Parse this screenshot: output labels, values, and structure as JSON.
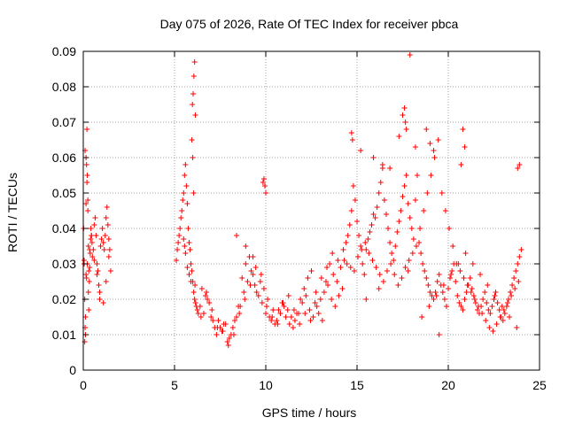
{
  "chart_data": {
    "type": "scatter",
    "title": "Day 075 of 2026, Rate Of TEC Index for receiver pbca",
    "xlabel": "GPS time / hours",
    "ylabel": "ROTI / TECUs",
    "xlim": [
      0,
      25
    ],
    "ylim": [
      0,
      0.09
    ],
    "x_ticks": [
      "0",
      "5",
      "10",
      "15",
      "20",
      "25"
    ],
    "y_ticks": [
      "0",
      "0.01",
      "0.02",
      "0.03",
      "0.04",
      "0.05",
      "0.06",
      "0.07",
      "0.08",
      "0.09"
    ],
    "grid": true,
    "marker": "+",
    "color": "#ff0000",
    "series": [
      {
        "x": [
          0.02,
          0.05,
          0.08,
          0.1,
          0.12,
          0.15,
          0.18,
          0.2,
          0.22,
          0.25,
          0.28,
          0.3,
          0.33,
          0.35,
          0.38,
          0.4,
          0.42,
          0.45,
          0.48,
          0.5,
          0.55,
          0.6,
          0.65,
          0.7,
          0.75,
          0.8,
          0.85,
          0.9,
          0.95,
          1.0,
          1.05,
          1.1,
          1.15,
          1.2,
          1.25,
          1.3,
          1.35,
          1.4,
          1.45,
          1.5,
          0.1,
          0.15,
          0.2,
          0.25,
          0.3,
          0.08,
          0.12,
          0.18,
          0.22,
          0.35,
          0.45,
          0.6,
          0.75,
          0.9,
          1.1,
          1.25,
          1.4,
          0.05,
          0.15,
          0.28,
          5.1,
          5.15,
          5.2,
          5.25,
          5.3,
          5.35,
          5.4,
          5.45,
          5.5,
          5.55,
          5.6,
          5.65,
          5.7,
          5.75,
          5.8,
          5.85,
          5.9,
          5.95,
          6.0,
          6.05,
          6.1,
          6.15,
          6.2,
          6.25,
          6.3,
          5.98,
          6.02,
          6.06,
          6.1,
          6.14,
          5.95,
          6.0,
          6.05,
          5.5,
          5.55,
          5.6,
          5.7,
          5.8,
          5.9,
          6.12,
          6.4,
          6.6,
          6.8,
          7.0,
          7.2,
          7.4,
          7.6,
          7.8,
          8.0,
          8.2,
          8.4,
          8.6,
          8.8,
          9.0,
          9.2,
          9.4,
          9.6,
          9.8,
          10.0,
          10.2,
          10.4,
          10.6,
          10.8,
          11.0,
          11.2,
          11.4,
          11.6,
          11.8,
          12.0,
          12.2,
          12.4,
          12.6,
          12.8,
          13.0,
          13.2,
          13.4,
          13.6,
          13.8,
          14.0,
          14.2,
          6.5,
          6.7,
          6.9,
          7.1,
          7.3,
          7.5,
          7.7,
          7.9,
          8.1,
          8.3,
          8.5,
          8.7,
          8.9,
          9.1,
          9.3,
          9.5,
          9.7,
          9.9,
          10.1,
          10.3,
          10.5,
          10.7,
          10.9,
          11.1,
          11.3,
          11.5,
          11.7,
          11.9,
          12.1,
          12.3,
          12.5,
          12.7,
          12.9,
          13.1,
          13.3,
          13.5,
          13.7,
          13.9,
          14.1,
          14.3,
          6.45,
          6.75,
          7.05,
          7.35,
          7.65,
          7.95,
          8.25,
          8.55,
          8.85,
          9.15,
          9.45,
          9.75,
          10.05,
          10.35,
          10.65,
          10.95,
          11.25,
          11.55,
          11.85,
          12.15,
          12.45,
          12.75,
          13.05,
          13.35,
          13.65,
          13.95,
          14.25,
          9.85,
          9.9,
          9.95,
          10.0,
          8.4,
          8.9,
          9.3,
          14.4,
          14.5,
          14.6,
          14.7,
          14.8,
          14.9,
          15.0,
          15.1,
          15.2,
          15.3,
          15.4,
          15.5,
          15.6,
          15.7,
          15.8,
          15.9,
          16.0,
          16.1,
          16.2,
          16.3,
          16.4,
          16.5,
          16.6,
          16.7,
          16.8,
          16.9,
          17.0,
          17.1,
          17.2,
          17.3,
          17.4,
          17.5,
          17.6,
          17.7,
          17.8,
          17.9,
          18.0,
          18.1,
          18.2,
          18.3,
          14.45,
          14.65,
          14.85,
          15.05,
          15.25,
          15.45,
          15.65,
          15.85,
          16.05,
          16.25,
          16.45,
          16.65,
          16.85,
          17.05,
          17.25,
          17.45,
          17.65,
          17.85,
          18.05,
          18.25,
          14.7,
          14.75,
          15.2,
          15.9,
          16.4,
          16.8,
          17.3,
          17.5,
          17.6,
          17.65,
          17.7,
          15.5,
          16.2,
          17.8,
          18.4,
          18.5,
          18.6,
          18.7,
          18.8,
          18.9,
          19.0,
          19.1,
          19.2,
          19.3,
          19.4,
          19.5,
          19.6,
          19.7,
          19.8,
          19.9,
          20.0,
          20.1,
          20.2,
          20.3,
          20.4,
          20.5,
          20.6,
          20.7,
          20.8,
          20.9,
          21.0,
          21.1,
          21.2,
          21.3,
          21.4,
          21.5,
          21.6,
          21.7,
          21.8,
          21.9,
          22.0,
          22.1,
          22.2,
          22.3,
          22.4,
          22.5,
          22.6,
          22.7,
          22.8,
          22.9,
          23.0,
          23.1,
          23.2,
          23.3,
          23.4,
          23.5,
          23.6,
          23.7,
          23.8,
          23.9,
          24.0,
          18.45,
          18.65,
          18.85,
          19.05,
          19.25,
          19.45,
          19.65,
          19.85,
          20.05,
          20.25,
          20.45,
          20.65,
          20.85,
          21.05,
          21.25,
          21.45,
          21.65,
          21.85,
          22.05,
          22.25,
          22.45,
          22.65,
          22.85,
          23.05,
          23.25,
          23.45,
          23.65,
          23.85,
          18.55,
          18.95,
          19.35,
          19.75,
          20.15,
          20.55,
          20.95,
          21.35,
          21.75,
          22.15,
          22.55,
          22.95,
          23.35,
          23.75,
          18.8,
          19.0,
          19.2,
          20.8,
          20.9,
          23.8,
          23.9,
          18.2,
          17.9,
          20.7,
          19.5
        ],
        "y": [
          0.04,
          0.03,
          0.02,
          0.012,
          0.015,
          0.047,
          0.058,
          0.068,
          0.055,
          0.048,
          0.035,
          0.017,
          0.025,
          0.029,
          0.033,
          0.037,
          0.04,
          0.038,
          0.036,
          0.032,
          0.034,
          0.041,
          0.043,
          0.038,
          0.03,
          0.028,
          0.024,
          0.022,
          0.035,
          0.037,
          0.04,
          0.036,
          0.034,
          0.038,
          0.043,
          0.046,
          0.041,
          0.037,
          0.034,
          0.028,
          0.062,
          0.06,
          0.053,
          0.045,
          0.028,
          0.008,
          0.01,
          0.026,
          0.03,
          0.034,
          0.038,
          0.031,
          0.027,
          0.02,
          0.019,
          0.025,
          0.032,
          0.031,
          0.027,
          0.022,
          0.031,
          0.034,
          0.036,
          0.038,
          0.04,
          0.043,
          0.045,
          0.048,
          0.05,
          0.055,
          0.058,
          0.052,
          0.047,
          0.04,
          0.036,
          0.034,
          0.03,
          0.028,
          0.025,
          0.022,
          0.02,
          0.019,
          0.018,
          0.017,
          0.016,
          0.075,
          0.078,
          0.083,
          0.087,
          0.072,
          0.065,
          0.06,
          0.05,
          0.037,
          0.035,
          0.033,
          0.029,
          0.027,
          0.025,
          0.024,
          0.018,
          0.016,
          0.02,
          0.015,
          0.012,
          0.014,
          0.011,
          0.013,
          0.009,
          0.012,
          0.015,
          0.018,
          0.022,
          0.025,
          0.028,
          0.024,
          0.021,
          0.019,
          0.016,
          0.015,
          0.017,
          0.014,
          0.016,
          0.018,
          0.017,
          0.015,
          0.014,
          0.016,
          0.019,
          0.021,
          0.017,
          0.015,
          0.018,
          0.02,
          0.022,
          0.024,
          0.02,
          0.018,
          0.021,
          0.023,
          0.023,
          0.021,
          0.019,
          0.014,
          0.01,
          0.012,
          0.013,
          0.008,
          0.01,
          0.014,
          0.018,
          0.026,
          0.03,
          0.032,
          0.027,
          0.022,
          0.025,
          0.023,
          0.02,
          0.014,
          0.013,
          0.017,
          0.019,
          0.015,
          0.013,
          0.012,
          0.016,
          0.02,
          0.023,
          0.026,
          0.028,
          0.019,
          0.016,
          0.014,
          0.025,
          0.03,
          0.027,
          0.025,
          0.029,
          0.031,
          0.015,
          0.022,
          0.017,
          0.012,
          0.011,
          0.007,
          0.01,
          0.016,
          0.02,
          0.024,
          0.029,
          0.027,
          0.018,
          0.015,
          0.013,
          0.019,
          0.021,
          0.017,
          0.013,
          0.016,
          0.014,
          0.022,
          0.026,
          0.029,
          0.033,
          0.031,
          0.034,
          0.053,
          0.054,
          0.052,
          0.05,
          0.038,
          0.035,
          0.032,
          0.036,
          0.038,
          0.041,
          0.045,
          0.052,
          0.048,
          0.042,
          0.038,
          0.035,
          0.03,
          0.027,
          0.034,
          0.037,
          0.039,
          0.041,
          0.044,
          0.043,
          0.046,
          0.05,
          0.053,
          0.057,
          0.048,
          0.044,
          0.04,
          0.036,
          0.033,
          0.031,
          0.035,
          0.039,
          0.042,
          0.045,
          0.049,
          0.052,
          0.055,
          0.047,
          0.043,
          0.04,
          0.037,
          0.048,
          0.055,
          0.03,
          0.029,
          0.028,
          0.032,
          0.034,
          0.036,
          0.033,
          0.031,
          0.029,
          0.027,
          0.025,
          0.028,
          0.03,
          0.027,
          0.024,
          0.026,
          0.029,
          0.031,
          0.033,
          0.035,
          0.067,
          0.065,
          0.062,
          0.06,
          0.058,
          0.057,
          0.066,
          0.072,
          0.074,
          0.07,
          0.068,
          0.02,
          0.023,
          0.028,
          0.036,
          0.033,
          0.03,
          0.028,
          0.026,
          0.024,
          0.022,
          0.021,
          0.02,
          0.022,
          0.025,
          0.027,
          0.024,
          0.022,
          0.02,
          0.018,
          0.023,
          0.026,
          0.028,
          0.03,
          0.025,
          0.021,
          0.019,
          0.018,
          0.017,
          0.02,
          0.022,
          0.024,
          0.026,
          0.023,
          0.021,
          0.019,
          0.017,
          0.016,
          0.018,
          0.02,
          0.022,
          0.019,
          0.017,
          0.016,
          0.018,
          0.02,
          0.022,
          0.019,
          0.017,
          0.015,
          0.014,
          0.016,
          0.018,
          0.02,
          0.022,
          0.024,
          0.026,
          0.028,
          0.03,
          0.032,
          0.034,
          0.04,
          0.045,
          0.05,
          0.055,
          0.06,
          0.065,
          0.05,
          0.045,
          0.04,
          0.035,
          0.03,
          0.028,
          0.026,
          0.024,
          0.022,
          0.02,
          0.018,
          0.016,
          0.014,
          0.012,
          0.011,
          0.013,
          0.015,
          0.017,
          0.019,
          0.021,
          0.023,
          0.025,
          0.015,
          0.018,
          0.021,
          0.024,
          0.027,
          0.03,
          0.033,
          0.03,
          0.027,
          0.024,
          0.021,
          0.018,
          0.015,
          0.012,
          0.068,
          0.064,
          0.062,
          0.068,
          0.063,
          0.057,
          0.058,
          0.063,
          0.089,
          0.058,
          0.01
        ]
      }
    ]
  }
}
